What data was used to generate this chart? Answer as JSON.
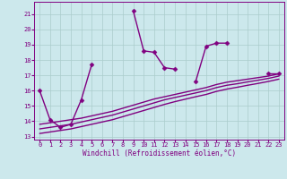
{
  "title": "",
  "xlabel": "Windchill (Refroidissement éolien,°C)",
  "ylabel": "",
  "background_color": "#cce8ec",
  "grid_color": "#aacccc",
  "line_color": "#800080",
  "xlim": [
    -0.5,
    23.5
  ],
  "ylim": [
    12.8,
    21.8
  ],
  "yticks": [
    13,
    14,
    15,
    16,
    17,
    18,
    19,
    20,
    21
  ],
  "xticks": [
    0,
    1,
    2,
    3,
    4,
    5,
    6,
    7,
    8,
    9,
    10,
    11,
    12,
    13,
    14,
    15,
    16,
    17,
    18,
    19,
    20,
    21,
    22,
    23
  ],
  "series": [
    {
      "x": [
        0,
        1,
        2,
        3,
        4,
        5,
        6,
        7,
        8,
        9,
        10,
        11,
        12,
        13,
        14,
        15,
        16,
        17,
        18,
        19,
        20,
        21,
        22,
        23
      ],
      "y": [
        16.0,
        14.1,
        13.6,
        13.8,
        15.4,
        17.7,
        null,
        null,
        null,
        21.2,
        18.6,
        18.5,
        17.5,
        17.4,
        null,
        16.6,
        18.9,
        19.1,
        19.1,
        null,
        null,
        null,
        17.1,
        17.1
      ],
      "marker": "D",
      "markersize": 2.5,
      "linewidth": 1.0
    },
    {
      "x": [
        0,
        1,
        2,
        3,
        4,
        5,
        6,
        7,
        8,
        9,
        10,
        11,
        12,
        13,
        14,
        15,
        16,
        17,
        18,
        19,
        20,
        21,
        22,
        23
      ],
      "y": [
        13.8,
        13.9,
        14.0,
        14.1,
        14.2,
        14.35,
        14.5,
        14.65,
        14.85,
        15.05,
        15.25,
        15.45,
        15.6,
        15.75,
        15.9,
        16.05,
        16.2,
        16.4,
        16.55,
        16.65,
        16.75,
        16.85,
        16.95,
        17.1
      ],
      "marker": null,
      "markersize": 0,
      "linewidth": 1.0
    },
    {
      "x": [
        0,
        1,
        2,
        3,
        4,
        5,
        6,
        7,
        8,
        9,
        10,
        11,
        12,
        13,
        14,
        15,
        16,
        17,
        18,
        19,
        20,
        21,
        22,
        23
      ],
      "y": [
        13.5,
        13.6,
        13.7,
        13.8,
        13.95,
        14.1,
        14.25,
        14.4,
        14.6,
        14.8,
        15.0,
        15.2,
        15.4,
        15.55,
        15.7,
        15.85,
        16.0,
        16.2,
        16.35,
        16.45,
        16.57,
        16.68,
        16.8,
        16.95
      ],
      "marker": null,
      "markersize": 0,
      "linewidth": 1.0
    },
    {
      "x": [
        0,
        1,
        2,
        3,
        4,
        5,
        6,
        7,
        8,
        9,
        10,
        11,
        12,
        13,
        14,
        15,
        16,
        17,
        18,
        19,
        20,
        21,
        22,
        23
      ],
      "y": [
        13.2,
        13.3,
        13.4,
        13.5,
        13.65,
        13.8,
        13.95,
        14.1,
        14.3,
        14.5,
        14.7,
        14.9,
        15.1,
        15.28,
        15.44,
        15.6,
        15.75,
        15.95,
        16.1,
        16.22,
        16.35,
        16.47,
        16.6,
        16.75
      ],
      "marker": null,
      "markersize": 0,
      "linewidth": 1.0
    }
  ]
}
